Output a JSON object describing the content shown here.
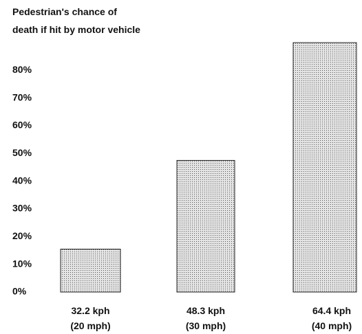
{
  "chart_data": {
    "type": "bar",
    "title": "Pedestrian's chance of\ndeath if hit by motor vehicle",
    "categories": [
      "32.2 kph\n(20 mph)",
      "48.3 kph\n(30 mph)",
      "64.4 kph\n(40 mph)"
    ],
    "values": [
      15.5,
      47.5,
      90
    ],
    "color": "#d0d0d0",
    "ylim": [
      0,
      90
    ],
    "yticks": [
      {
        "value": 0,
        "label": "0%"
      },
      {
        "value": 10,
        "label": "10%"
      },
      {
        "value": 20,
        "label": "20%"
      },
      {
        "value": 30,
        "label": "30%"
      },
      {
        "value": 40,
        "label": "40%"
      },
      {
        "value": 50,
        "label": "50%"
      },
      {
        "value": 60,
        "label": "60%"
      },
      {
        "value": 70,
        "label": "70%"
      },
      {
        "value": 80,
        "label": "80%"
      }
    ],
    "grid": false
  }
}
